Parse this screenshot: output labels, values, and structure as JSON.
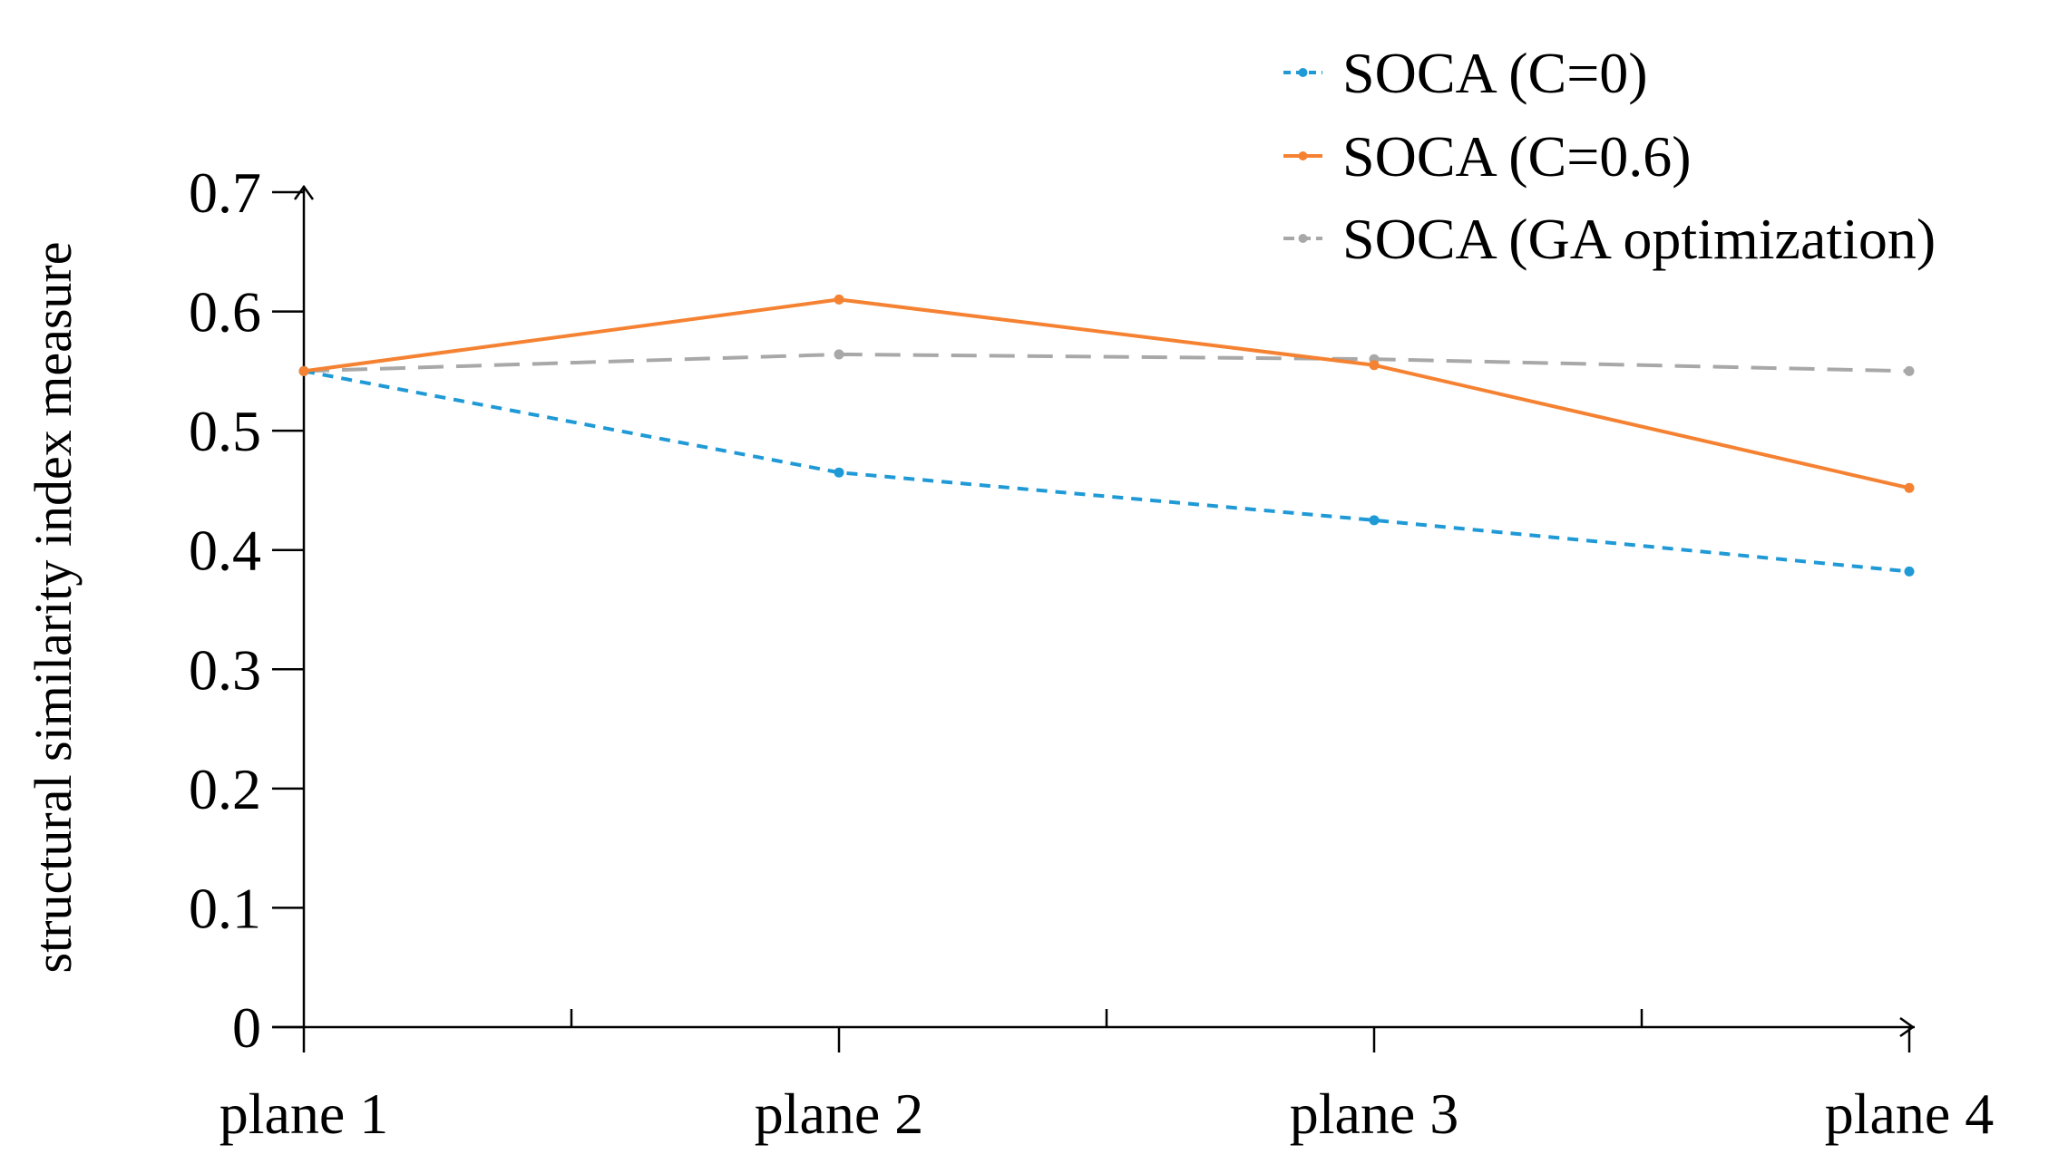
{
  "chart_data": {
    "type": "line",
    "title": "",
    "xlabel": "",
    "ylabel": "structural similarity index measure",
    "categories": [
      "plane 1",
      "plane 2",
      "plane 3",
      "plane 4"
    ],
    "ylim": [
      0,
      0.7
    ],
    "yticks": [
      "0",
      "0.1",
      "0.2",
      "0.3",
      "0.4",
      "0.5",
      "0.6",
      "0.7"
    ],
    "grid": false,
    "legend_position": "top-right",
    "series": [
      {
        "name": "SOCA (C=0)",
        "values": [
          0.55,
          0.465,
          0.425,
          0.382
        ],
        "color": "#1f9ad6",
        "dash": "dashed"
      },
      {
        "name": "SOCA (C=0.6)",
        "values": [
          0.55,
          0.61,
          0.555,
          0.452
        ],
        "color": "#f58232",
        "dash": "solid"
      },
      {
        "name": "SOCA (GA optimization)",
        "values": [
          0.55,
          0.564,
          0.56,
          0.55
        ],
        "color": "#a8a8a8",
        "dash": "long-dash"
      }
    ]
  }
}
